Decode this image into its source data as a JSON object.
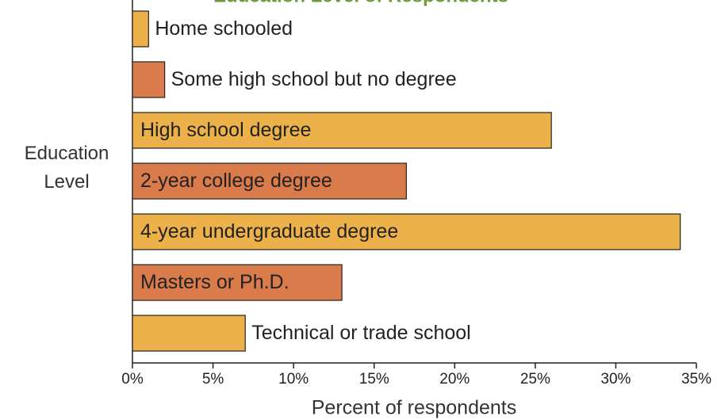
{
  "chart_data": {
    "type": "barh",
    "title": "Education Level of Respondents",
    "categories": [
      "Home schooled",
      "Some high school but no degree",
      "High school degree",
      "2-year college degree",
      "4-year undergraduate degree",
      "Masters or Ph.D.",
      "Technical or trade school"
    ],
    "values": [
      1,
      2,
      26,
      17,
      34,
      13,
      7
    ],
    "colors": [
      "#edb14a",
      "#d97b4b",
      "#edb14a",
      "#d97b4b",
      "#edb14a",
      "#d97b4b",
      "#edb14a"
    ],
    "xlabel": "Percent of respondents",
    "ylabel": "Education Level",
    "xlim": [
      0,
      35
    ],
    "xticks": [
      {
        "value": 0,
        "label": "0%"
      },
      {
        "value": 5,
        "label": "5%"
      },
      {
        "value": 10,
        "label": "10%"
      },
      {
        "value": 15,
        "label": "15%"
      },
      {
        "value": 20,
        "label": "20%"
      },
      {
        "value": 25,
        "label": "25%"
      },
      {
        "value": 30,
        "label": "30%"
      },
      {
        "value": 35,
        "label": "35%"
      }
    ],
    "grid": false
  }
}
